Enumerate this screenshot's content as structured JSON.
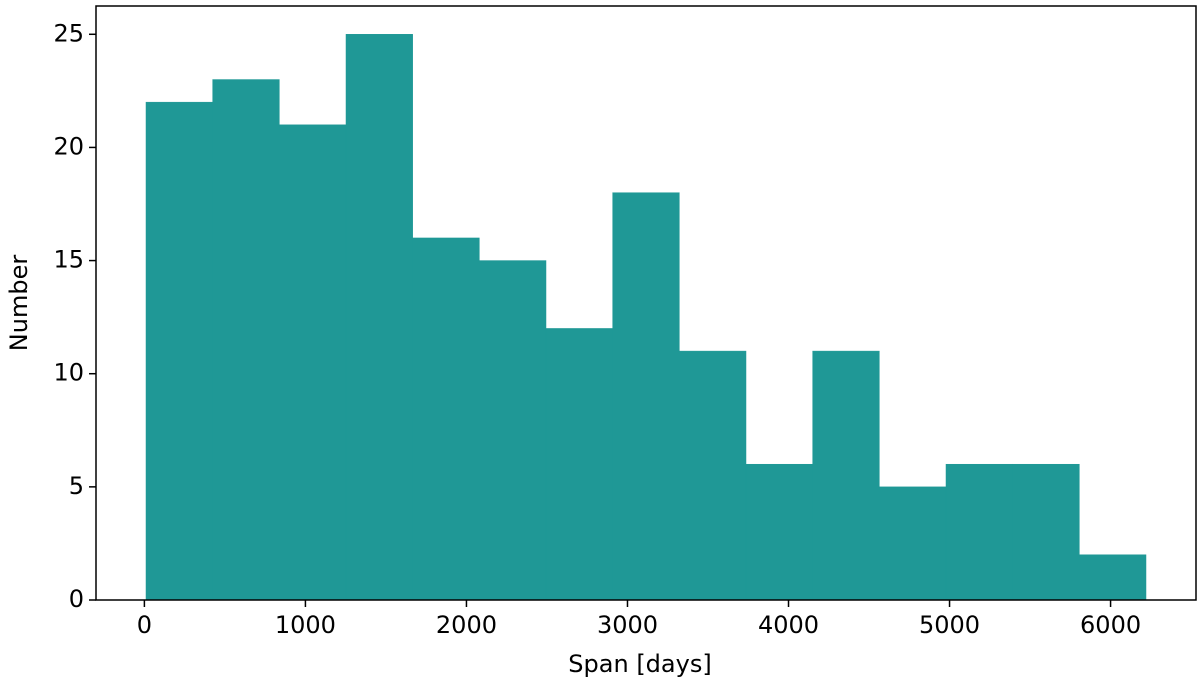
{
  "chart_data": {
    "type": "histogram",
    "xlabel": "Span [days]",
    "ylabel": "Number",
    "bins": [
      10,
      424,
      838,
      1252,
      1666,
      2080,
      2494,
      2908,
      3322,
      3736,
      4150,
      4564,
      4978,
      5392,
      5806,
      6220
    ],
    "counts": [
      22,
      23,
      21,
      25,
      16,
      15,
      12,
      18,
      11,
      6,
      11,
      5,
      6,
      6,
      2
    ],
    "color": "#1f9896",
    "xlim": [
      -300.5,
      6530.5
    ],
    "xticks": [
      0,
      1000,
      2000,
      3000,
      4000,
      5000,
      6000
    ],
    "ylim": [
      0,
      26.25
    ],
    "yticks": [
      0,
      5,
      10,
      15,
      20,
      25
    ],
    "grid": false
  }
}
